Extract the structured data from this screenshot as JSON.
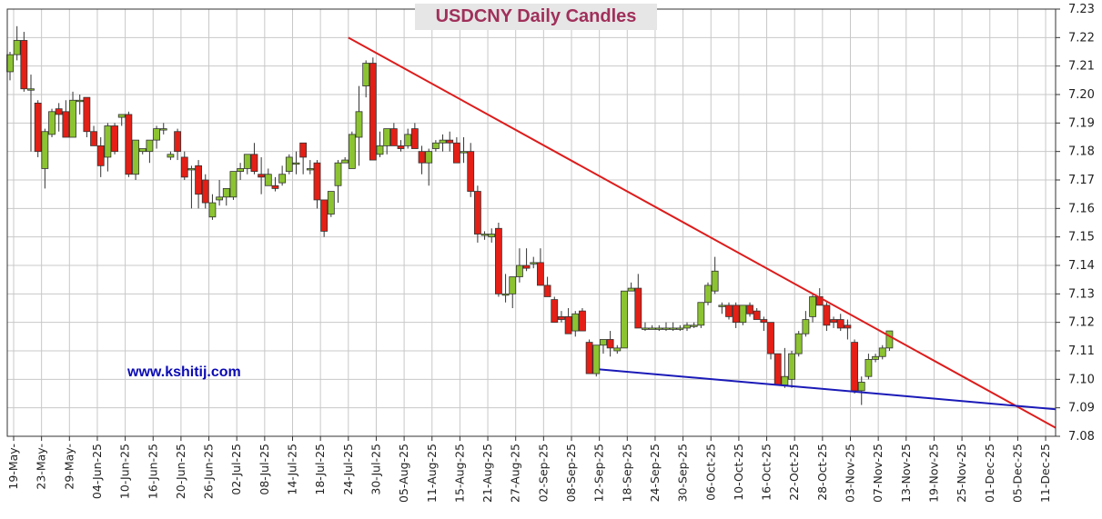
{
  "chart_data": {
    "type": "candlestick",
    "title": "USDCNY Daily Candles",
    "watermark": "www.kshitij.com",
    "ylim": [
      7.08,
      7.23
    ],
    "y_ticks": [
      "7.08",
      "7.09",
      "7.10",
      "7.11",
      "7.12",
      "7.13",
      "7.14",
      "7.15",
      "7.16",
      "7.17",
      "7.18",
      "7.19",
      "7.20",
      "7.21",
      "7.22",
      "7.23"
    ],
    "x_tick_labels": [
      "19-May-25",
      "23-May-25",
      "29-May-25",
      "04-Jun-25",
      "10-Jun-25",
      "16-Jun-25",
      "20-Jun-25",
      "26-Jun-25",
      "02-Jul-25",
      "08-Jul-25",
      "14-Jul-25",
      "18-Jul-25",
      "24-Jul-25",
      "30-Jul-25",
      "05-Aug-25",
      "11-Aug-25",
      "15-Aug-25",
      "21-Aug-25",
      "27-Aug-25",
      "02-Sep-25",
      "08-Sep-25",
      "12-Sep-25",
      "18-Sep-25",
      "24-Sep-25",
      "30-Sep-25",
      "06-Oct-25",
      "10-Oct-25",
      "16-Oct-25",
      "22-Oct-25",
      "28-Oct-25",
      "03-Nov-25",
      "07-Nov-25",
      "13-Nov-25",
      "19-Nov-25",
      "25-Nov-25",
      "01-Dec-25",
      "05-Dec-25",
      "11-Dec-25"
    ],
    "x_tick_display": [
      "19-May-",
      "23-May-",
      "29-May-",
      "04-Jun-25",
      "10-Jun-25",
      "16-Jun-25",
      "20-Jun-25",
      "26-Jun-25",
      "02-Jul-25",
      "08-Jul-25",
      "14-Jul-25",
      "18-Jul-25",
      "24-Jul-25",
      "30-Jul-25",
      "05-Aug-25",
      "11-Aug-25",
      "15-Aug-25",
      "21-Aug-25",
      "27-Aug-25",
      "02-Sep-25",
      "08-Sep-25",
      "12-Sep-25",
      "18-Sep-25",
      "24-Sep-25",
      "30-Sep-25",
      "06-Oct-25",
      "10-Oct-25",
      "16-Oct-25",
      "22-Oct-25",
      "28-Oct-25",
      "03-Nov-25",
      "07-Nov-25",
      "13-Nov-25",
      "19-Nov-25",
      "25-Nov-25",
      "01-Dec-25",
      "05-Dec-25",
      "11-Dec-25"
    ],
    "candles_ohlc": [
      [
        7.208,
        7.215,
        7.205,
        7.214
      ],
      [
        7.214,
        7.224,
        7.212,
        7.219
      ],
      [
        7.219,
        7.222,
        7.201,
        7.202
      ],
      [
        7.202,
        7.207,
        7.18,
        7.202
      ],
      [
        7.197,
        7.198,
        7.178,
        7.18
      ],
      [
        7.174,
        7.188,
        7.167,
        7.187
      ],
      [
        7.186,
        7.195,
        7.185,
        7.194
      ],
      [
        7.195,
        7.197,
        7.187,
        7.193
      ],
      [
        7.194,
        7.198,
        7.185,
        7.185
      ],
      [
        7.185,
        7.201,
        7.185,
        7.198
      ],
      [
        7.198,
        7.2,
        7.193,
        7.198
      ],
      [
        7.199,
        7.199,
        7.185,
        7.187
      ],
      [
        7.187,
        7.189,
        7.183,
        7.182
      ],
      [
        7.182,
        7.185,
        7.171,
        7.175
      ],
      [
        7.178,
        7.19,
        7.173,
        7.189
      ],
      [
        7.189,
        7.19,
        7.179,
        7.18
      ],
      [
        7.192,
        7.193,
        7.189,
        7.193
      ],
      [
        7.193,
        7.194,
        7.171,
        7.172
      ],
      [
        7.172,
        7.177,
        7.17,
        7.184
      ],
      [
        7.18,
        7.181,
        7.179,
        7.181
      ],
      [
        7.18,
        7.182,
        7.176,
        7.184
      ],
      [
        7.184,
        7.189,
        7.181,
        7.188
      ],
      [
        7.188,
        7.19,
        7.186,
        7.188
      ],
      [
        7.178,
        7.18,
        7.177,
        7.179
      ],
      [
        7.187,
        7.188,
        7.177,
        7.18
      ],
      [
        7.178,
        7.18,
        7.17,
        7.171
      ],
      [
        7.174,
        7.175,
        7.16,
        7.174
      ],
      [
        7.175,
        7.177,
        7.16,
        7.165
      ],
      [
        7.17,
        7.172,
        7.16,
        7.162
      ],
      [
        7.157,
        7.165,
        7.156,
        7.162
      ],
      [
        7.163,
        7.17,
        7.161,
        7.164
      ],
      [
        7.164,
        7.167,
        7.161,
        7.167
      ],
      [
        7.164,
        7.168,
        7.163,
        7.173
      ],
      [
        7.173,
        7.176,
        7.17,
        7.174
      ],
      [
        7.174,
        7.178,
        7.172,
        7.179
      ],
      [
        7.179,
        7.183,
        7.172,
        7.173
      ],
      [
        7.172,
        7.178,
        7.165,
        7.171
      ],
      [
        7.168,
        7.174,
        7.168,
        7.172
      ],
      [
        7.168,
        7.171,
        7.166,
        7.167
      ],
      [
        7.169,
        7.175,
        7.168,
        7.172
      ],
      [
        7.173,
        7.179,
        7.172,
        7.178
      ],
      [
        7.176,
        7.18,
        7.172,
        7.176
      ],
      [
        7.183,
        7.183,
        7.172,
        7.178
      ],
      [
        7.174,
        7.177,
        7.172,
        7.174
      ],
      [
        7.176,
        7.177,
        7.16,
        7.163
      ],
      [
        7.163,
        7.155,
        7.15,
        7.152
      ],
      [
        7.158,
        7.162,
        7.157,
        7.166
      ],
      [
        7.168,
        7.177,
        7.162,
        7.176
      ],
      [
        7.176,
        7.178,
        7.176,
        7.177
      ],
      [
        7.174,
        7.187,
        7.174,
        7.186
      ],
      [
        7.185,
        7.203,
        7.175,
        7.194
      ],
      [
        7.203,
        7.212,
        7.199,
        7.211
      ],
      [
        7.211,
        7.213,
        7.177,
        7.177
      ],
      [
        7.179,
        7.187,
        7.178,
        7.182
      ],
      [
        7.182,
        7.186,
        7.179,
        7.188
      ],
      [
        7.188,
        7.19,
        7.182,
        7.182
      ],
      [
        7.182,
        7.184,
        7.18,
        7.181
      ],
      [
        7.182,
        7.188,
        7.181,
        7.186
      ],
      [
        7.188,
        7.19,
        7.181,
        7.181
      ],
      [
        7.18,
        7.182,
        7.172,
        7.176
      ],
      [
        7.176,
        7.181,
        7.168,
        7.18
      ],
      [
        7.181,
        7.184,
        7.18,
        7.183
      ],
      [
        7.183,
        7.186,
        7.18,
        7.184
      ],
      [
        7.184,
        7.187,
        7.18,
        7.183
      ],
      [
        7.183,
        7.185,
        7.176,
        7.176
      ],
      [
        7.18,
        7.185,
        7.176,
        7.18
      ],
      [
        7.18,
        7.183,
        7.164,
        7.166
      ],
      [
        7.166,
        7.168,
        7.148,
        7.151
      ],
      [
        7.151,
        7.152,
        7.149,
        7.151
      ],
      [
        7.15,
        7.153,
        7.148,
        7.151
      ],
      [
        7.153,
        7.155,
        7.129,
        7.13
      ],
      [
        7.13,
        7.137,
        7.127,
        7.13
      ],
      [
        7.13,
        7.136,
        7.125,
        7.136
      ],
      [
        7.136,
        7.146,
        7.134,
        7.14
      ],
      [
        7.14,
        7.146,
        7.138,
        7.139
      ],
      [
        7.141,
        7.143,
        7.139,
        7.141
      ],
      [
        7.141,
        7.146,
        7.133,
        7.133
      ],
      [
        7.133,
        7.136,
        7.129,
        7.129
      ],
      [
        7.128,
        7.129,
        7.12,
        7.12
      ],
      [
        7.122,
        7.124,
        7.12,
        7.121
      ],
      [
        7.122,
        7.125,
        7.116,
        7.116
      ],
      [
        7.117,
        7.124,
        7.115,
        7.123
      ],
      [
        7.124,
        7.125,
        7.117,
        7.117
      ],
      [
        7.113,
        7.114,
        7.102,
        7.102
      ],
      [
        7.102,
        7.112,
        7.101,
        7.112
      ],
      [
        7.112,
        7.114,
        7.109,
        7.114
      ],
      [
        7.114,
        7.117,
        7.108,
        7.111
      ],
      [
        7.11,
        7.112,
        7.109,
        7.111
      ],
      [
        7.111,
        7.131,
        7.111,
        7.131
      ],
      [
        7.131,
        7.134,
        7.131,
        7.132
      ],
      [
        7.132,
        7.137,
        7.118,
        7.118
      ],
      [
        7.118,
        7.12,
        7.117,
        7.118
      ],
      [
        7.118,
        7.119,
        7.118,
        7.118
      ],
      [
        7.118,
        7.119,
        7.117,
        7.118
      ],
      [
        7.118,
        7.12,
        7.117,
        7.118
      ],
      [
        7.118,
        7.12,
        7.117,
        7.118
      ],
      [
        7.118,
        7.119,
        7.117,
        7.118
      ],
      [
        7.118,
        7.12,
        7.117,
        7.119
      ],
      [
        7.119,
        7.12,
        7.118,
        7.119
      ],
      [
        7.119,
        7.127,
        7.118,
        7.127
      ],
      [
        7.127,
        7.134,
        7.126,
        7.133
      ],
      [
        7.131,
        7.143,
        7.13,
        7.138
      ],
      [
        7.126,
        7.127,
        7.123,
        7.126
      ],
      [
        7.126,
        7.127,
        7.121,
        7.122
      ],
      [
        7.126,
        7.127,
        7.118,
        7.12
      ],
      [
        7.12,
        7.126,
        7.119,
        7.126
      ],
      [
        7.126,
        7.127,
        7.122,
        7.123
      ],
      [
        7.124,
        7.125,
        7.121,
        7.121
      ],
      [
        7.121,
        7.122,
        7.117,
        7.12
      ],
      [
        7.12,
        7.12,
        7.107,
        7.109
      ],
      [
        7.109,
        7.109,
        7.098,
        7.098
      ],
      [
        7.098,
        7.111,
        7.097,
        7.101
      ],
      [
        7.1,
        7.11,
        7.097,
        7.109
      ],
      [
        7.109,
        7.117,
        7.108,
        7.116
      ],
      [
        7.116,
        7.124,
        7.115,
        7.121
      ],
      [
        7.122,
        7.13,
        7.12,
        7.129
      ],
      [
        7.129,
        7.132,
        7.126,
        7.126
      ],
      [
        7.126,
        7.127,
        7.117,
        7.119
      ],
      [
        7.121,
        7.122,
        7.118,
        7.12
      ],
      [
        7.121,
        7.123,
        7.117,
        7.118
      ],
      [
        7.119,
        7.121,
        7.114,
        7.118
      ],
      [
        7.113,
        7.114,
        7.095,
        7.096
      ],
      [
        7.096,
        7.101,
        7.091,
        7.099
      ],
      [
        7.101,
        7.109,
        7.1,
        7.107
      ],
      [
        7.107,
        7.109,
        7.106,
        7.108
      ],
      [
        7.108,
        7.112,
        7.107,
        7.111
      ],
      [
        7.111,
        7.117,
        7.11,
        7.117
      ]
    ],
    "trendlines": [
      {
        "role": "upper",
        "color": "#dd1c1c",
        "from": {
          "x": "24-Jul-25",
          "y": 7.22
        },
        "to": {
          "x": "end",
          "y": 7.083
        }
      },
      {
        "role": "lower",
        "color": "#1a1ab8",
        "from": {
          "x": "12-Sep-25",
          "y": 7.1035
        },
        "to": {
          "x": "end",
          "y": 7.0895
        }
      }
    ],
    "colors": {
      "up": "#8cc431",
      "down": "#e41f16",
      "grid": "#c8c8c8",
      "axis": "#333333",
      "title_bg": "#e6e6e6",
      "title_fg": "#a0305a",
      "watermark": "#0a0ab4"
    },
    "grid": true
  }
}
